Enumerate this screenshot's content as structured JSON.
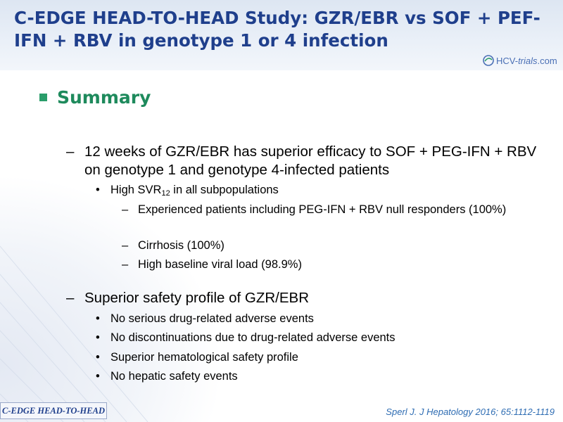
{
  "slide": {
    "title": "C-EDGE HEAD-TO-HEAD Study: GZR/EBR vs SOF + PEF-IFN + RBV in genotype 1 or 4 infection",
    "logo": {
      "main": "HCV-",
      "accent": "trials",
      "suffix": ".com"
    },
    "section_marker": "square-bullet",
    "section_title": "Summary",
    "dash": "–",
    "bullet": "•",
    "points": [
      {
        "text": "12 weeks of GZR/EBR has superior efficacy to SOF + PEG-IFN + RBV on genotype 1 and genotype 4-infected patients",
        "sub": [
          {
            "text_before": "High SVR",
            "subscript": "12",
            "text_after": " in all subpopulations",
            "sub": [
              "Experienced patients including PEG-IFN + RBV null responders (100%)",
              "Cirrhosis (100%)",
              "High baseline viral load (98.9%)"
            ]
          }
        ]
      },
      {
        "text": "Superior safety profile of GZR/EBR",
        "sub": [
          "No serious drug-related adverse events",
          "No discontinuations due to drug-related adverse events",
          "Superior hematological safety profile",
          "No hepatic safety events"
        ]
      }
    ],
    "footer_tab": "C-EDGE HEAD-TO-HEAD",
    "citation": "Sperl J. J Hepatology 2016; 65:1112-1119",
    "colors": {
      "title": "#1f3f8c",
      "section": "#1e8a5c",
      "bullet_square": "#2a9d6a",
      "citation": "#2f6db3"
    }
  }
}
